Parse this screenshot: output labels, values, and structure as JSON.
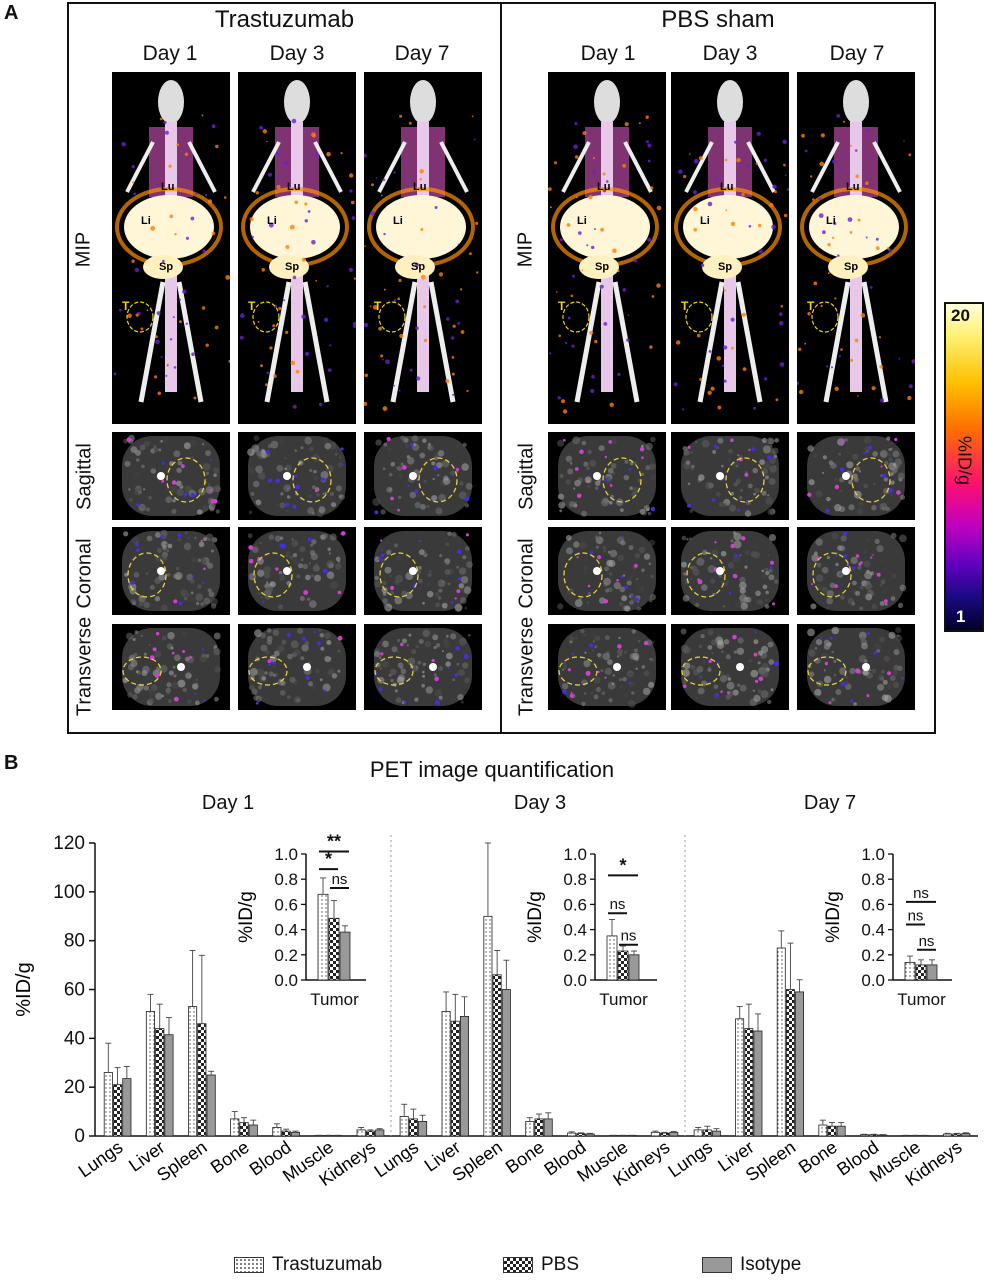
{
  "panel_a": {
    "letter": "A",
    "groups": [
      {
        "title": "Trastuzumab",
        "days": [
          "Day 1",
          "Day 3",
          "Day 7"
        ]
      },
      {
        "title": "PBS sham",
        "days": [
          "Day 1",
          "Day 3",
          "Day 7"
        ]
      }
    ],
    "row_labels": [
      "MIP",
      "Sagittal",
      "Coronal",
      "Transverse"
    ],
    "organ_labels": {
      "lu": "Lu",
      "li": "Li",
      "sp": "Sp",
      "t": "T"
    },
    "colorbar": {
      "max_label": "20",
      "min_label": "1",
      "unit_label": "%ID/g"
    }
  },
  "panel_b": {
    "letter": "B",
    "title": "PET image quantification",
    "legend": [
      "Trastuzumab",
      "PBS",
      "Isotype"
    ]
  },
  "chart_data": {
    "type": "bar",
    "title": "PET image quantification",
    "ylabel": "%ID/g",
    "ylim": [
      0,
      120
    ],
    "yticks": [
      0,
      20,
      40,
      60,
      80,
      100,
      120
    ],
    "series_names": [
      "Trastuzumab",
      "PBS",
      "Isotype"
    ],
    "panels": [
      {
        "day": "Day 1",
        "categories": [
          "Lungs",
          "Liver",
          "Spleen",
          "Bone",
          "Blood",
          "Muscle",
          "Kidneys"
        ],
        "series": [
          {
            "name": "Trastuzumab",
            "values": [
              26,
              51,
              53,
              7,
              3.5,
              0.2,
              2.5
            ],
            "errors": [
              12,
              7,
              23,
              3,
              1.5,
              0.1,
              1
            ]
          },
          {
            "name": "PBS",
            "values": [
              21,
              44,
              46,
              5.5,
              2,
              0.2,
              2
            ],
            "errors": [
              7,
              10,
              28,
              2,
              0.8,
              0.1,
              0.5
            ]
          },
          {
            "name": "Isotype",
            "values": [
              23.5,
              41.5,
              25,
              4.5,
              1.5,
              0.2,
              2.5
            ],
            "errors": [
              5,
              7,
              1.5,
              2,
              0.5,
              0.1,
              0.5
            ]
          }
        ],
        "inset": {
          "category": "Tumor",
          "ylabel": "%ID/g",
          "ylim": [
            0,
            1.0
          ],
          "yticks": [
            "0.0",
            "0.2",
            "0.4",
            "0.6",
            "0.8",
            "1.0"
          ],
          "values": [
            0.68,
            0.49,
            0.38
          ],
          "errors": [
            0.13,
            0.14,
            0.05
          ],
          "significance": [
            {
              "label": "**",
              "from": 0,
              "to": 2,
              "level": 1.02
            },
            {
              "label": "*",
              "from": 0,
              "to": 1,
              "level": 0.88
            },
            {
              "label": "ns",
              "from": 1,
              "to": 2,
              "level": 0.73
            }
          ]
        }
      },
      {
        "day": "Day 3",
        "categories": [
          "Lungs",
          "Liver",
          "Spleen",
          "Bone",
          "Blood",
          "Muscle",
          "Kidneys"
        ],
        "series": [
          {
            "name": "Trastuzumab",
            "values": [
              8,
              51,
              90,
              6,
              1.2,
              0.2,
              1.5
            ],
            "errors": [
              5,
              8,
              30,
              1.5,
              0.5,
              0.1,
              0.5
            ]
          },
          {
            "name": "PBS",
            "values": [
              7,
              47,
              66,
              7,
              1,
              0.2,
              1.2
            ],
            "errors": [
              4,
              11,
              10,
              2,
              0.3,
              0.1,
              0.3
            ]
          },
          {
            "name": "Isotype",
            "values": [
              6,
              49,
              60,
              7,
              0.8,
              0.2,
              1.5
            ],
            "errors": [
              2.5,
              8,
              12,
              2.5,
              0.3,
              0.1,
              0.4
            ]
          }
        ],
        "inset": {
          "category": "Tumor",
          "ylabel": "%ID/g",
          "ylim": [
            0,
            1.0
          ],
          "yticks": [
            "0.0",
            "0.2",
            "0.4",
            "0.6",
            "0.8",
            "1.0"
          ],
          "values": [
            0.35,
            0.23,
            0.2
          ],
          "errors": [
            0.13,
            0.04,
            0.03
          ],
          "significance": [
            {
              "label": "*",
              "from": 0,
              "to": 2,
              "level": 0.83
            },
            {
              "label": "ns",
              "from": 0,
              "to": 1,
              "level": 0.53
            },
            {
              "label": "ns",
              "from": 1,
              "to": 2,
              "level": 0.28
            }
          ]
        }
      },
      {
        "day": "Day 7",
        "categories": [
          "Lungs",
          "Liver",
          "Spleen",
          "Bone",
          "Blood",
          "Muscle",
          "Kidneys"
        ],
        "series": [
          {
            "name": "Trastuzumab",
            "values": [
              2.5,
              48,
              77,
              4.5,
              0.5,
              0.2,
              0.8
            ],
            "errors": [
              1,
              5,
              7,
              2,
              0.2,
              0.1,
              0.3
            ]
          },
          {
            "name": "PBS",
            "values": [
              2.5,
              44,
              60,
              4,
              0.5,
              0.2,
              0.8
            ],
            "errors": [
              1.5,
              10,
              19,
              1.5,
              0.2,
              0.1,
              0.3
            ]
          },
          {
            "name": "Isotype",
            "values": [
              2,
              43,
              59,
              4,
              0.4,
              0.2,
              1
            ],
            "errors": [
              1,
              7,
              5,
              1.5,
              0.2,
              0.1,
              0.3
            ]
          }
        ],
        "inset": {
          "category": "Tumor",
          "ylabel": "%ID/g",
          "ylim": [
            0,
            1.0
          ],
          "yticks": [
            "0.0",
            "0.2",
            "0.4",
            "0.6",
            "0.8",
            "1.0"
          ],
          "values": [
            0.14,
            0.12,
            0.12
          ],
          "errors": [
            0.05,
            0.04,
            0.04
          ],
          "significance": [
            {
              "label": "ns",
              "from": 0,
              "to": 2,
              "level": 0.62
            },
            {
              "label": "ns",
              "from": 0,
              "to": 1,
              "level": 0.44
            },
            {
              "label": "ns",
              "from": 1,
              "to": 2,
              "level": 0.24
            }
          ]
        }
      }
    ]
  }
}
